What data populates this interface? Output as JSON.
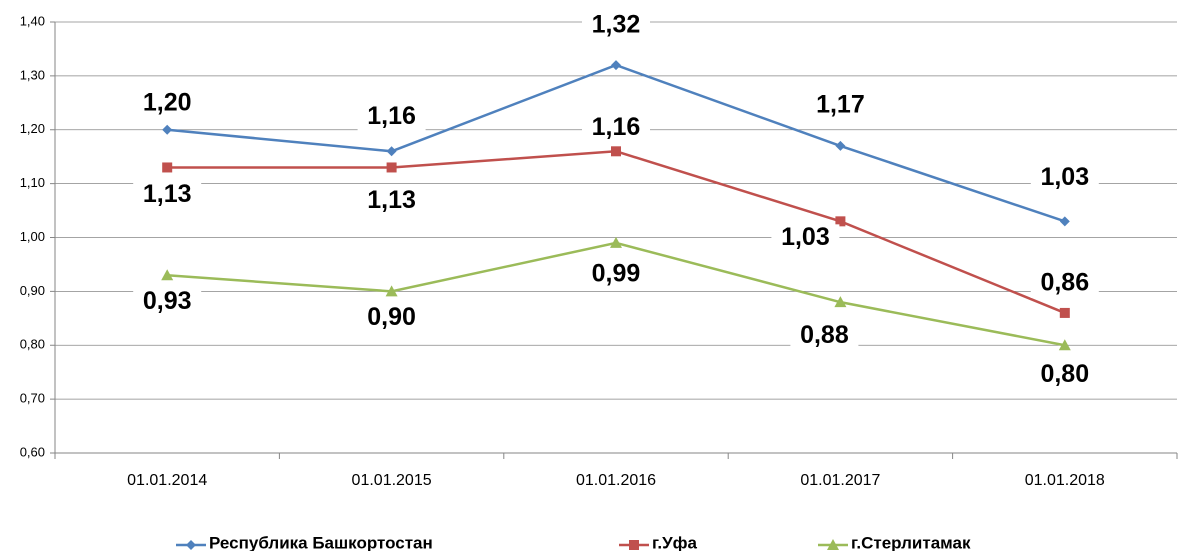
{
  "chart_data": {
    "type": "line",
    "categories": [
      "01.01.2014",
      "01.01.2015",
      "01.01.2016",
      "01.01.2017",
      "01.01.2018"
    ],
    "series": [
      {
        "name": "Республика Башкортостан",
        "color": "#4f81bd",
        "marker": "diamond",
        "values": [
          1.2,
          1.16,
          1.32,
          1.17,
          1.03
        ],
        "value_labels": [
          "1,20",
          "1,16",
          "1,32",
          "1,17",
          "1,03"
        ]
      },
      {
        "name": "г.Уфа",
        "color": "#c0504d",
        "marker": "square",
        "values": [
          1.13,
          1.13,
          1.16,
          1.03,
          0.86
        ],
        "value_labels": [
          "1,13",
          "1,13",
          "1,16",
          "1,03",
          "0,86"
        ]
      },
      {
        "name": "г.Стерлитамак",
        "color": "#9bbb59",
        "marker": "triangle",
        "values": [
          0.93,
          0.9,
          0.99,
          0.88,
          0.8
        ],
        "value_labels": [
          "0,93",
          "0,90",
          "0,99",
          "0,88",
          "0,80"
        ]
      }
    ],
    "ylim": [
      0.6,
      1.4
    ],
    "yticks": [
      {
        "value": 0.6,
        "label": "0,60"
      },
      {
        "value": 0.7,
        "label": "0,70"
      },
      {
        "value": 0.8,
        "label": "0,80"
      },
      {
        "value": 0.9,
        "label": "0,90"
      },
      {
        "value": 1.0,
        "label": "1,00"
      },
      {
        "value": 1.1,
        "label": "1,10"
      },
      {
        "value": 1.2,
        "label": "1,20"
      },
      {
        "value": 1.3,
        "label": "1,30"
      },
      {
        "value": 1.4,
        "label": "1,40"
      }
    ],
    "grid": true,
    "legend": "bottom"
  }
}
